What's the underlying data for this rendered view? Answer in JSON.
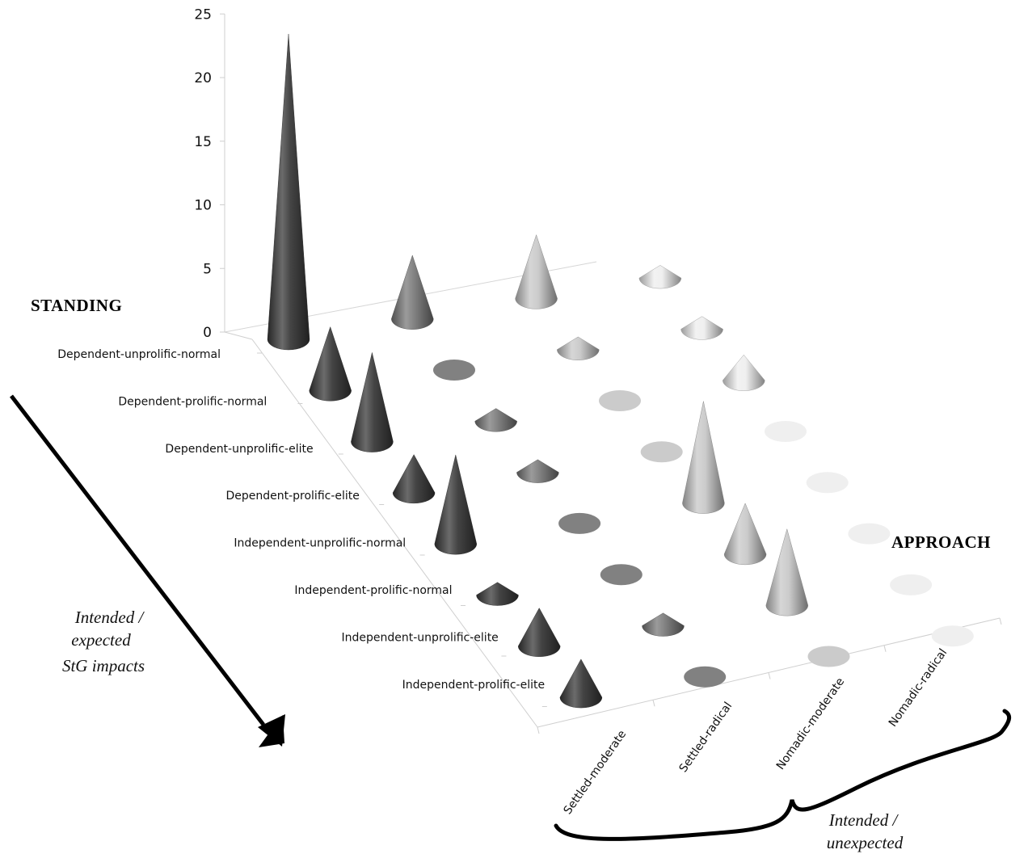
{
  "chart_data": {
    "type": "3d-cone",
    "z_ticks": [
      "0",
      "5",
      "10",
      "15",
      "20",
      "25"
    ],
    "zlim": [
      0,
      25
    ],
    "y_axis_title": "STANDING",
    "x_axis_title": "APPROACH",
    "standing_categories": [
      "Dependent-unprolific-normal",
      "Dependent-prolific-normal",
      "Dependent-unprolific-elite",
      "Dependent-prolific-elite",
      "Independent-unprolific-normal",
      "Independent-prolific-normal",
      "Independent-unprolific-elite",
      "Independent-prolific-elite"
    ],
    "approach_categories": [
      "Settled-moderate",
      "Settled-radical",
      "Nomadic-moderate",
      "Nomadic-radical"
    ],
    "series": [
      {
        "name": "Settled-moderate",
        "color": "#3a3a3a",
        "values": [
          24,
          5,
          7,
          3,
          7,
          1,
          3,
          3
        ]
      },
      {
        "name": "Settled-radical",
        "color": "#7a7a7a",
        "values": [
          5,
          0,
          1,
          1,
          0,
          0,
          1,
          0
        ]
      },
      {
        "name": "Nomadic-moderate",
        "color": "#c8c8c8",
        "values": [
          5,
          1,
          0,
          0,
          8,
          4,
          6,
          0
        ]
      },
      {
        "name": "Nomadic-radical",
        "color": "#eeeeee",
        "values": [
          1,
          1,
          2,
          0,
          0,
          0,
          0,
          0
        ]
      }
    ]
  },
  "annotations": {
    "left_note": [
      "Intended /",
      "expected",
      "StG impacts"
    ],
    "bottom_note": [
      "Intended /",
      "unexpected"
    ]
  }
}
